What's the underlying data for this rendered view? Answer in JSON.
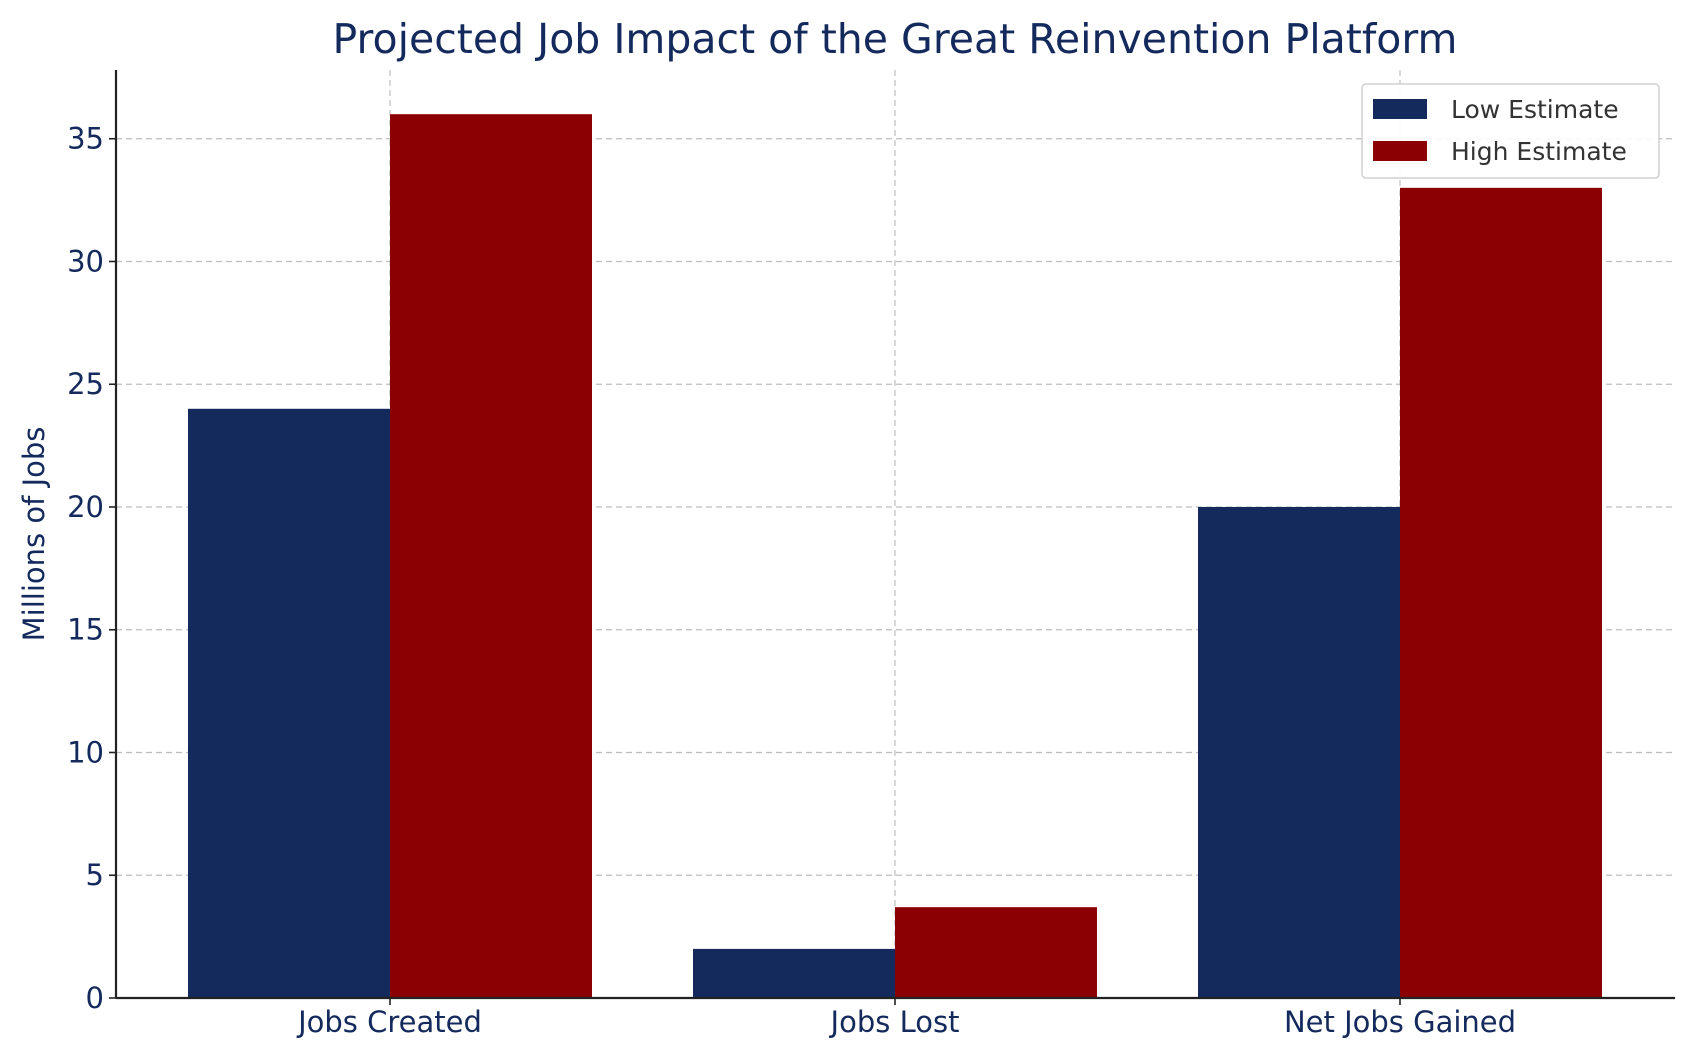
{
  "chart_data": {
    "type": "bar",
    "title": "Projected Job Impact of the Great Reinvention Platform",
    "xlabel": "",
    "ylabel": "Millions of Jobs",
    "categories": [
      "Jobs Created",
      "Jobs Lost",
      "Net Jobs Gained"
    ],
    "series": [
      {
        "name": "Low Estimate",
        "values": [
          24,
          2,
          20
        ],
        "color": "#142a5c"
      },
      {
        "name": "High Estimate",
        "values": [
          36,
          3.7,
          33
        ],
        "color": "#8b0000"
      }
    ],
    "ylim": [
      0,
      37.8
    ],
    "yticks": [
      "0",
      "5",
      "10",
      "15",
      "20",
      "25",
      "30",
      "35"
    ],
    "grid": true,
    "legend_position": "top-right",
    "text_color": "#142a5c"
  }
}
